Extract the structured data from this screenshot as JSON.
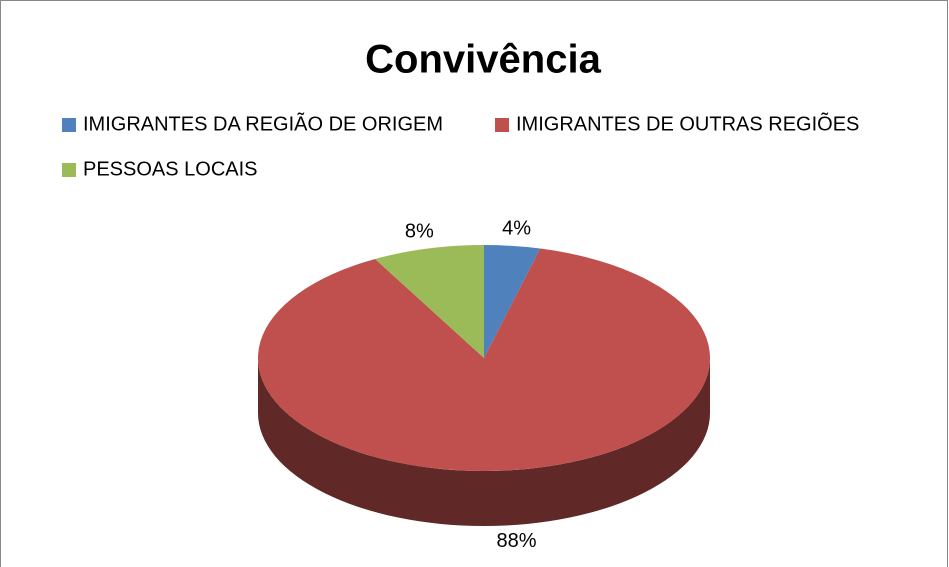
{
  "chart_data": {
    "type": "pie",
    "title": "Convivência",
    "categories": [
      "IMIGRANTES DA REGIÃO DE ORIGEM",
      "IMIGRANTES DE OUTRAS REGIÕES",
      "PESSOAS LOCAIS"
    ],
    "values": [
      4,
      88,
      8
    ],
    "value_labels": [
      "4%",
      "88%",
      "8%"
    ],
    "colors": [
      "#4f81bd",
      "#c0504d",
      "#9bbb59"
    ],
    "legend": "top"
  }
}
